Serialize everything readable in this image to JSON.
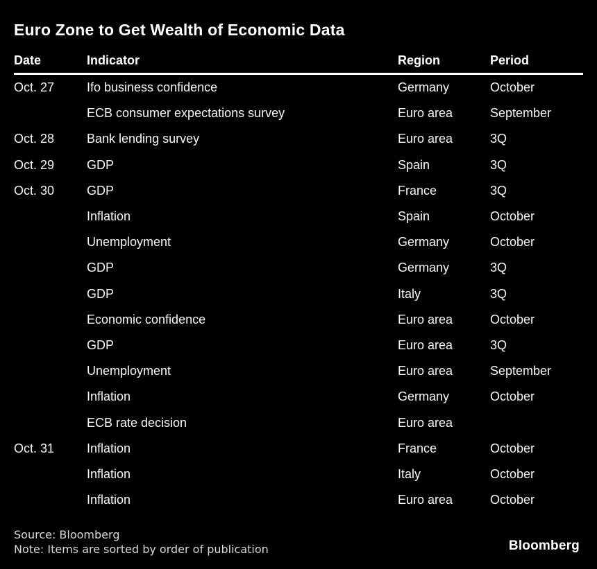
{
  "chart_data": {
    "type": "table",
    "title": "Euro Zone to Get Wealth of Economic Data",
    "columns": [
      "Date",
      "Indicator",
      "Region",
      "Period"
    ],
    "rows": [
      [
        "Oct. 27",
        "Ifo business confidence",
        "Germany",
        "October"
      ],
      [
        "",
        "ECB consumer expectations survey",
        "Euro area",
        "September"
      ],
      [
        "Oct. 28",
        "Bank lending survey",
        "Euro area",
        "3Q"
      ],
      [
        "Oct. 29",
        "GDP",
        "Spain",
        "3Q"
      ],
      [
        "Oct. 30",
        "GDP",
        "France",
        "3Q"
      ],
      [
        "",
        "Inflation",
        "Spain",
        "October"
      ],
      [
        "",
        "Unemployment",
        "Germany",
        "October"
      ],
      [
        "",
        "GDP",
        "Germany",
        "3Q"
      ],
      [
        "",
        "GDP",
        "Italy",
        "3Q"
      ],
      [
        "",
        "Economic confidence",
        "Euro area",
        "October"
      ],
      [
        "",
        "GDP",
        "Euro area",
        "3Q"
      ],
      [
        "",
        "Unemployment",
        "Euro area",
        "September"
      ],
      [
        "",
        "Inflation",
        "Germany",
        "October"
      ],
      [
        "",
        "ECB rate decision",
        "Euro area",
        ""
      ],
      [
        "Oct. 31",
        "Inflation",
        "France",
        "October"
      ],
      [
        "",
        "Inflation",
        "Italy",
        "October"
      ],
      [
        "",
        "Inflation",
        "Euro area",
        "October"
      ]
    ],
    "legend": "off",
    "grid": "off"
  },
  "footer": {
    "source": "Source: Bloomberg",
    "note": "Note: Items are sorted by order of publication",
    "brand": "Bloomberg"
  },
  "colors": {
    "background": "#000000",
    "title_text": "#ffffff",
    "body_text": "#f7f7f7",
    "footer_text": "#d9d9d9",
    "header_rule": "#ffffff"
  }
}
